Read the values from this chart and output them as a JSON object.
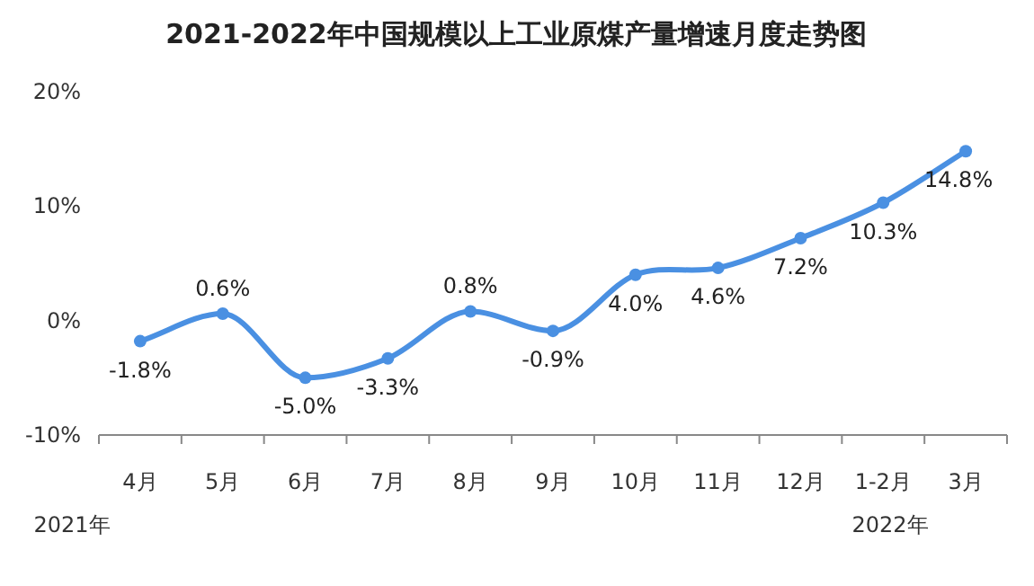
{
  "chart_data": {
    "type": "line",
    "title": "2021-2022年中国规模以上工业原煤产量增速月度走势图",
    "categories": [
      "4月",
      "5月",
      "6月",
      "7月",
      "8月",
      "9月",
      "10月",
      "11月",
      "12月",
      "1-2月",
      "3月"
    ],
    "series": [
      {
        "color": "#4a90e2",
        "values": [
          -1.8,
          0.6,
          -5.0,
          -3.3,
          0.8,
          -0.9,
          4.0,
          4.6,
          7.2,
          10.3,
          14.8
        ],
        "value_labels": [
          "-1.8%",
          "0.6%",
          "-5.0%",
          "-3.3%",
          "0.8%",
          "-0.9%",
          "4.0%",
          "4.6%",
          "7.2%",
          "10.3%",
          "14.8%"
        ]
      }
    ],
    "ylim": [
      -10,
      20
    ],
    "yticks": [
      {
        "value": -10,
        "label": "-10%"
      },
      {
        "value": 0,
        "label": "0%"
      },
      {
        "value": 10,
        "label": "10%"
      },
      {
        "value": 20,
        "label": "20%"
      }
    ],
    "grid": false,
    "marker": "circle",
    "line_style": "solid",
    "annotations": [
      "2021年",
      "2022年"
    ]
  }
}
